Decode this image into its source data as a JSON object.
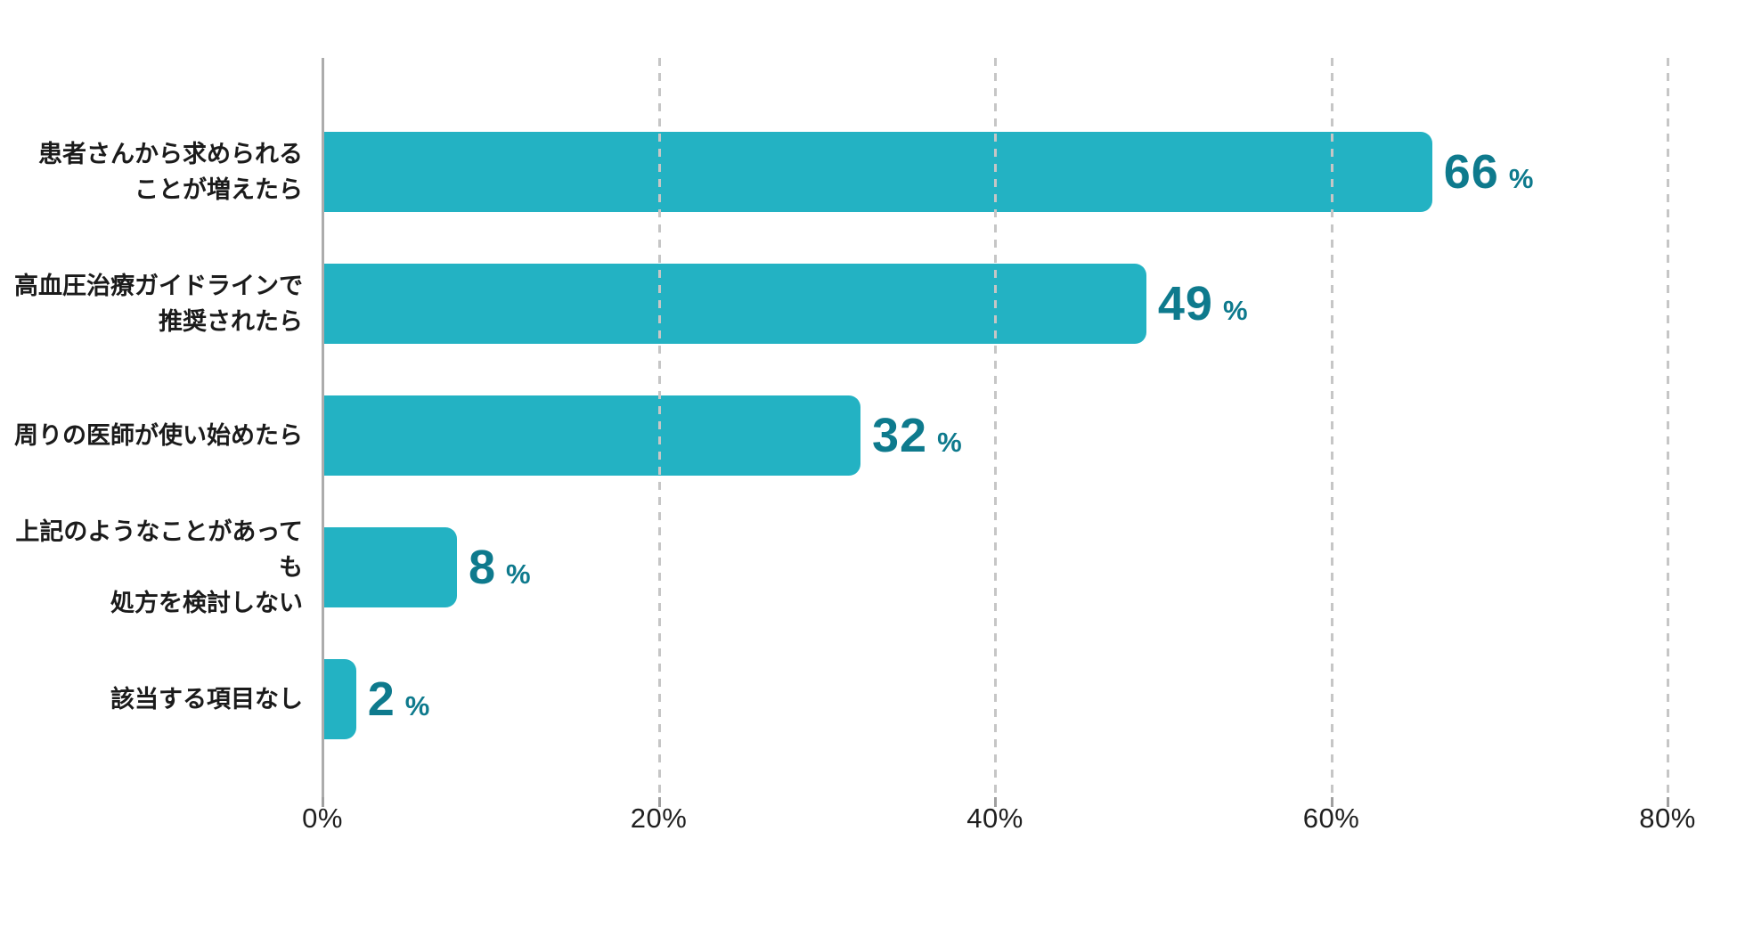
{
  "chart_data": {
    "type": "bar",
    "orientation": "horizontal",
    "title": "",
    "xlabel": "",
    "ylabel": "",
    "categories": [
      "患者さんから求められることが増えたら",
      "高血圧治療ガイドラインで推奨されたら",
      "周りの医師が使い始めたら",
      "上記のようなことがあっても処方を検討しない",
      "該当する項目なし"
    ],
    "label_lines": [
      [
        "患者さんから求められる",
        "ことが増えたら"
      ],
      [
        "高血圧治療ガイドラインで",
        "推奨されたら"
      ],
      [
        "周りの医師が使い始めたら",
        ""
      ],
      [
        "上記のようなことがあっても",
        "処方を検討しない"
      ],
      [
        "該当する項目なし",
        ""
      ]
    ],
    "values": [
      66,
      49,
      32,
      8,
      2
    ],
    "value_labels": [
      "66",
      "49",
      "32",
      "8",
      "2"
    ],
    "value_suffix": "%",
    "xlim": [
      0,
      80
    ],
    "x_tick_values": [
      0,
      20,
      40,
      60,
      80
    ],
    "x_ticks": [
      "0%",
      "20%",
      "40%",
      "60%",
      "80%"
    ],
    "grid": "vertical-dashed",
    "legend": "none",
    "colors": {
      "bar": "#23b2c3",
      "value_label": "#0e7a8d",
      "category_label": "#1b1b1b",
      "gridline": "#c6c6c6",
      "axis_line": "#acacac",
      "tick_label": "#1f1f1f",
      "background": "#ffffff"
    }
  }
}
